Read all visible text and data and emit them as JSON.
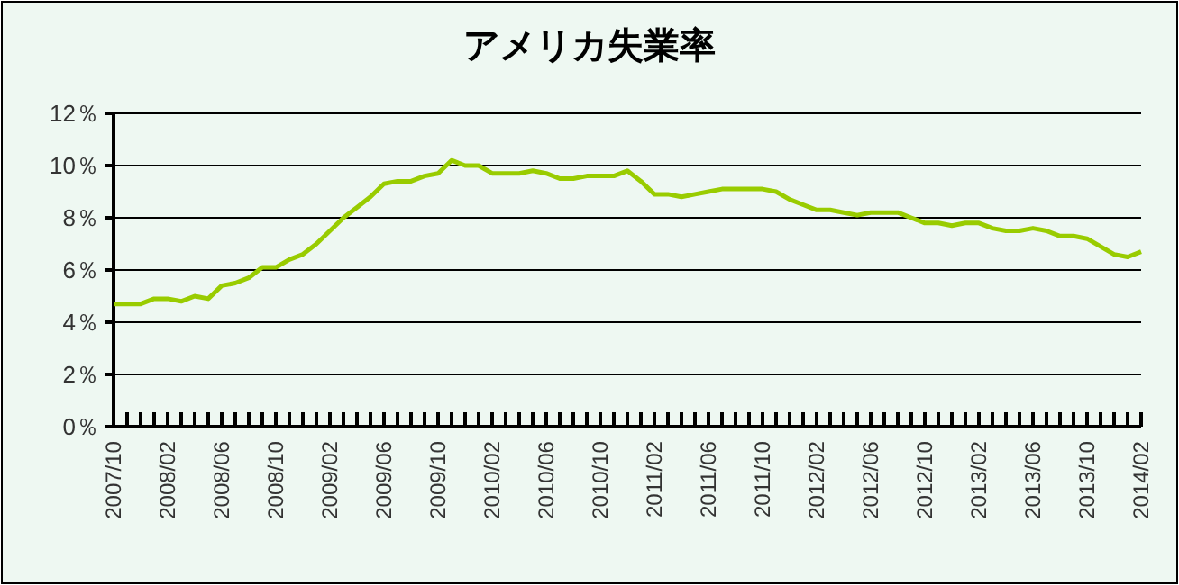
{
  "chart_data": {
    "type": "line",
    "title": "アメリカ失業率",
    "categories": [
      "2007/10",
      null,
      null,
      null,
      "2008/02",
      null,
      null,
      null,
      "2008/06",
      null,
      null,
      null,
      "2008/10",
      null,
      null,
      null,
      "2009/02",
      null,
      null,
      null,
      "2009/06",
      null,
      null,
      null,
      "2009/10",
      null,
      null,
      null,
      "2010/02",
      null,
      null,
      null,
      "2010/06",
      null,
      null,
      null,
      "2010/10",
      null,
      null,
      null,
      "2011/02",
      null,
      null,
      null,
      "2011/06",
      null,
      null,
      null,
      "2011/10",
      null,
      null,
      null,
      "2012/02",
      null,
      null,
      null,
      "2012/06",
      null,
      null,
      null,
      "2012/10",
      null,
      null,
      null,
      "2013/02",
      null,
      null,
      null,
      "2013/06",
      null,
      null,
      null,
      "2013/10",
      null,
      null,
      null,
      "2014/02"
    ],
    "series": [
      {
        "color": "#99cc00",
        "values": [
          4.7,
          4.7,
          4.7,
          4.9,
          4.9,
          4.8,
          5.0,
          4.9,
          5.4,
          5.5,
          5.7,
          6.1,
          6.1,
          6.4,
          6.6,
          7.0,
          7.5,
          8.0,
          8.4,
          8.8,
          9.3,
          9.4,
          9.4,
          9.6,
          9.7,
          10.2,
          10.0,
          10.0,
          9.7,
          9.7,
          9.7,
          9.8,
          9.7,
          9.5,
          9.5,
          9.6,
          9.6,
          9.6,
          9.8,
          9.4,
          8.9,
          8.9,
          8.8,
          8.9,
          9.0,
          9.1,
          9.1,
          9.1,
          9.1,
          9.0,
          8.7,
          8.5,
          8.3,
          8.3,
          8.2,
          8.1,
          8.2,
          8.2,
          8.2,
          8.0,
          7.8,
          7.8,
          7.7,
          7.8,
          7.8,
          7.6,
          7.5,
          7.5,
          7.6,
          7.5,
          7.3,
          7.3,
          7.2,
          6.9,
          6.6,
          6.5,
          6.7
        ]
      }
    ],
    "ylim": [
      0,
      12
    ],
    "yticks": [
      {
        "value": 0,
        "label": "0％"
      },
      {
        "value": 2,
        "label": "2％"
      },
      {
        "value": 4,
        "label": "4％"
      },
      {
        "value": 6,
        "label": "6％"
      },
      {
        "value": 8,
        "label": "8％"
      },
      {
        "value": 10,
        "label": "10％"
      },
      {
        "value": 12,
        "label": "12％"
      }
    ],
    "grid": "y",
    "marker": "none",
    "line_style": "solid"
  }
}
